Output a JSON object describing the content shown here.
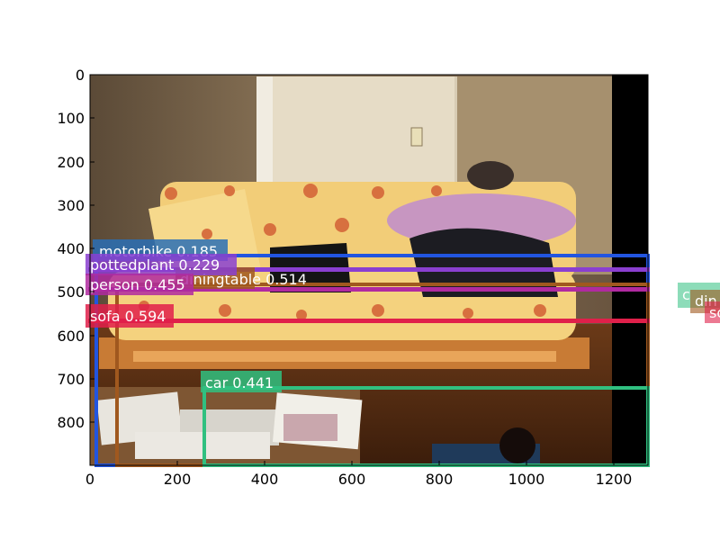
{
  "figure": {
    "x_ticks": [
      "0",
      "200",
      "400",
      "600",
      "800",
      "1000",
      "1200"
    ],
    "y_ticks": [
      "0",
      "100",
      "200",
      "300",
      "400",
      "500",
      "600",
      "700",
      "800"
    ]
  },
  "detections": [
    {
      "label": "motorbike 0.185",
      "color": "#2255e0"
    },
    {
      "label": "pottedplant 0.229",
      "color": "#8a3fd0"
    },
    {
      "label": "diningtable 0.514",
      "color": "#a0581e"
    },
    {
      "label": "person 0.455",
      "color": "#b02aa0"
    },
    {
      "label": "sofa 0.594",
      "color": "#e0204a"
    },
    {
      "label": "car 0.441",
      "color": "#30c080"
    }
  ],
  "offscreen_labels": [
    "c",
    "din",
    "so"
  ]
}
